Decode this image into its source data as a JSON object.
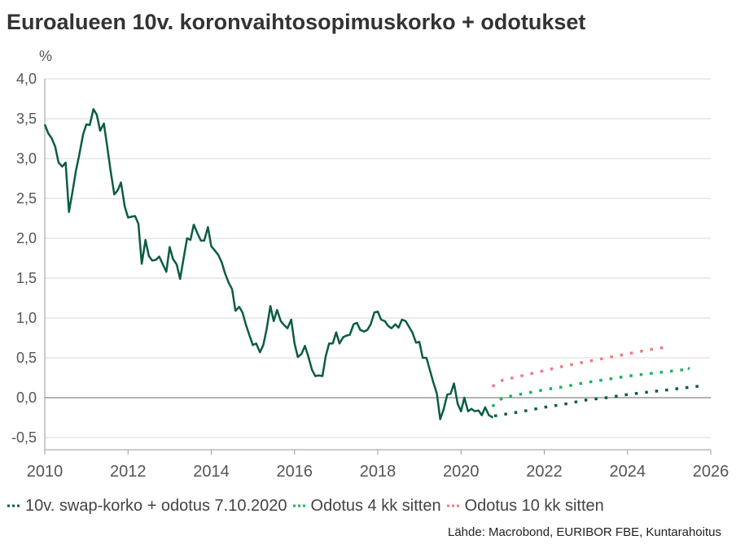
{
  "chart_data": {
    "type": "line",
    "title": "Euroalueen 10v. koronvaihtosopimuskorko + odotukset",
    "ylabel": "%",
    "xlabel": "",
    "ylim": [
      -0.5,
      4.0
    ],
    "xlim": [
      2010,
      2026
    ],
    "y_ticks": [
      "4,0",
      "3,5",
      "3,0",
      "2,5",
      "2,0",
      "1,5",
      "1,0",
      "0,5",
      "0,0",
      "-0,5"
    ],
    "y_tick_values": [
      4.0,
      3.5,
      3.0,
      2.5,
      2.0,
      1.5,
      1.0,
      0.5,
      0.0,
      -0.5
    ],
    "x_ticks": [
      "2010",
      "2012",
      "2014",
      "2016",
      "2018",
      "2020",
      "2022",
      "2024",
      "2026"
    ],
    "x_tick_values": [
      2010,
      2012,
      2014,
      2016,
      2018,
      2020,
      2022,
      2024,
      2026
    ],
    "grid": "horizontal",
    "legend_position": "bottom",
    "series": [
      {
        "name": "10v. swap-korko + odotus 7.10.2020",
        "color": "#0b5c45",
        "style": "solid",
        "x": [
          2010.0,
          2010.08,
          2010.17,
          2010.25,
          2010.33,
          2010.42,
          2010.5,
          2010.58,
          2010.67,
          2010.75,
          2010.83,
          2010.92,
          2011.0,
          2011.08,
          2011.17,
          2011.25,
          2011.33,
          2011.42,
          2011.5,
          2011.58,
          2011.67,
          2011.75,
          2011.83,
          2011.92,
          2012.0,
          2012.08,
          2012.17,
          2012.25,
          2012.33,
          2012.42,
          2012.5,
          2012.58,
          2012.67,
          2012.75,
          2012.83,
          2012.92,
          2013.0,
          2013.08,
          2013.17,
          2013.25,
          2013.33,
          2013.42,
          2013.5,
          2013.58,
          2013.67,
          2013.75,
          2013.83,
          2013.92,
          2014.0,
          2014.08,
          2014.17,
          2014.25,
          2014.33,
          2014.42,
          2014.5,
          2014.58,
          2014.67,
          2014.75,
          2014.83,
          2014.92,
          2015.0,
          2015.08,
          2015.17,
          2015.25,
          2015.33,
          2015.42,
          2015.5,
          2015.58,
          2015.67,
          2015.75,
          2015.83,
          2015.92,
          2016.0,
          2016.08,
          2016.17,
          2016.25,
          2016.33,
          2016.42,
          2016.5,
          2016.58,
          2016.67,
          2016.75,
          2016.83,
          2016.92,
          2017.0,
          2017.08,
          2017.17,
          2017.25,
          2017.33,
          2017.42,
          2017.5,
          2017.58,
          2017.67,
          2017.75,
          2017.83,
          2017.92,
          2018.0,
          2018.08,
          2018.17,
          2018.25,
          2018.33,
          2018.42,
          2018.5,
          2018.58,
          2018.67,
          2018.75,
          2018.83,
          2018.92,
          2019.0,
          2019.08,
          2019.17,
          2019.25,
          2019.33,
          2019.42,
          2019.5,
          2019.58,
          2019.67,
          2019.75,
          2019.83,
          2019.92,
          2020.0,
          2020.08,
          2020.17,
          2020.25,
          2020.33,
          2020.42,
          2020.5,
          2020.58,
          2020.67,
          2020.77
        ],
        "values": [
          3.43,
          3.32,
          3.25,
          3.15,
          2.95,
          2.9,
          2.95,
          2.33,
          2.6,
          2.85,
          3.05,
          3.3,
          3.43,
          3.42,
          3.62,
          3.55,
          3.35,
          3.44,
          3.15,
          2.85,
          2.55,
          2.6,
          2.7,
          2.4,
          2.26,
          2.27,
          2.28,
          2.18,
          1.68,
          1.98,
          1.78,
          1.72,
          1.73,
          1.77,
          1.68,
          1.58,
          1.89,
          1.74,
          1.67,
          1.49,
          1.73,
          2.0,
          1.98,
          2.17,
          2.06,
          1.97,
          1.97,
          2.14,
          1.9,
          1.85,
          1.79,
          1.7,
          1.56,
          1.44,
          1.36,
          1.09,
          1.14,
          1.07,
          0.92,
          0.78,
          0.66,
          0.68,
          0.57,
          0.66,
          0.86,
          1.15,
          0.96,
          1.1,
          0.96,
          0.91,
          0.87,
          0.98,
          0.68,
          0.51,
          0.55,
          0.65,
          0.52,
          0.35,
          0.27,
          0.28,
          0.27,
          0.52,
          0.68,
          0.68,
          0.82,
          0.68,
          0.76,
          0.78,
          0.79,
          0.92,
          0.94,
          0.85,
          0.83,
          0.85,
          0.92,
          1.07,
          1.08,
          0.98,
          0.96,
          0.9,
          0.87,
          0.92,
          0.88,
          0.98,
          0.96,
          0.89,
          0.82,
          0.69,
          0.7,
          0.5,
          0.5,
          0.35,
          0.2,
          0.05,
          -0.27,
          -0.15,
          0.04,
          0.05,
          0.18,
          -0.08,
          -0.17,
          0.0,
          -0.17,
          -0.14,
          -0.17,
          -0.16,
          -0.22,
          -0.12,
          -0.22,
          -0.25
        ]
      },
      {
        "name": "",
        "color": "#0b5c45",
        "style": "dotted",
        "x": [
          2020.8,
          2021.5,
          2022.0,
          2022.5,
          2023.0,
          2023.5,
          2024.0,
          2024.5,
          2025.0,
          2025.8
        ],
        "values": [
          -0.23,
          -0.17,
          -0.12,
          -0.08,
          -0.03,
          0.0,
          0.04,
          0.07,
          0.1,
          0.15
        ]
      },
      {
        "name": "Odotus 4 kk sitten",
        "color": "#17b55c",
        "style": "dotted",
        "x": [
          2020.75,
          2021.0,
          2021.5,
          2022.0,
          2022.5,
          2023.0,
          2023.5,
          2024.0,
          2024.5,
          2025.0,
          2025.5,
          2025.45
        ],
        "values": [
          -0.11,
          0.0,
          0.05,
          0.1,
          0.14,
          0.19,
          0.23,
          0.27,
          0.3,
          0.33,
          0.36,
          0.37
        ]
      },
      {
        "name": "Odotus 10 kk sitten",
        "color": "#ef7b83",
        "style": "dotted",
        "x": [
          2020.75,
          2021.0,
          2021.5,
          2022.0,
          2022.5,
          2023.0,
          2023.5,
          2024.0,
          2024.5,
          2025.0
        ],
        "values": [
          0.14,
          0.22,
          0.28,
          0.34,
          0.4,
          0.45,
          0.5,
          0.55,
          0.6,
          0.64
        ]
      }
    ],
    "legend": [
      {
        "label": "10v. swap-korko + odotus 7.10.2020",
        "color": "#0b5c45"
      },
      {
        "label": "Odotus 4 kk sitten",
        "color": "#17b55c"
      },
      {
        "label": "Odotus 10 kk sitten",
        "color": "#ef7b83"
      }
    ],
    "source": "Lähde: Macrobond, EURIBOR FBE, Kuntarahoitus"
  }
}
